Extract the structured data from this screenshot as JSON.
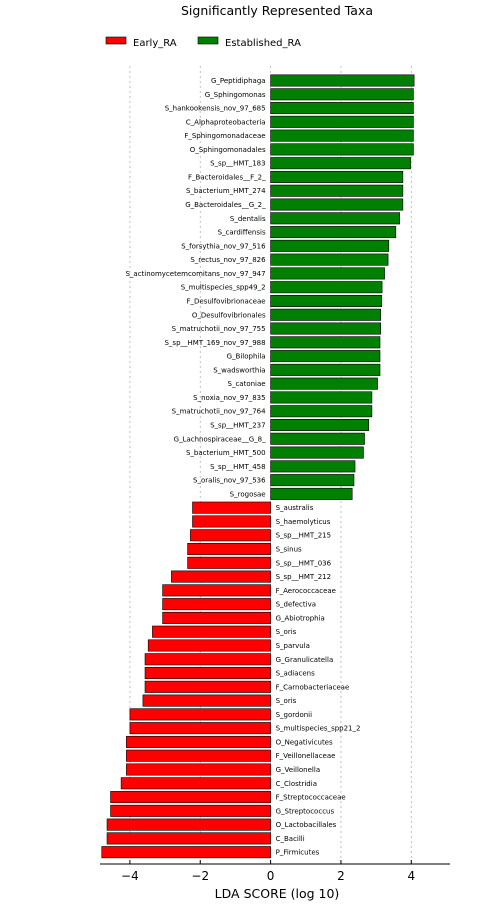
{
  "chart_data": {
    "type": "bar",
    "orientation": "horizontal",
    "title": "Significantly Represented Taxa",
    "xlabel": "LDA SCORE (log 10)",
    "ylabel": "",
    "xlim": [
      -4.85,
      5.1
    ],
    "xticks": [
      -4,
      -2,
      0,
      2,
      4
    ],
    "grid": true,
    "legend_position": "top",
    "series": [
      {
        "name": "Early_RA",
        "color": "#ff0000"
      },
      {
        "name": "Established_RA",
        "color": "#008000"
      }
    ],
    "bars": [
      {
        "label": "G_Peptidiphaga",
        "value": 4.08,
        "group": "Established_RA"
      },
      {
        "label": "G_Sphingomonas",
        "value": 4.06,
        "group": "Established_RA"
      },
      {
        "label": "S_hankookensis_nov_97_685",
        "value": 4.06,
        "group": "Established_RA"
      },
      {
        "label": "C_Alphaproteobacteria",
        "value": 4.06,
        "group": "Established_RA"
      },
      {
        "label": "F_Sphingomonadaceae",
        "value": 4.06,
        "group": "Established_RA"
      },
      {
        "label": "O_Sphingomonadales",
        "value": 4.06,
        "group": "Established_RA"
      },
      {
        "label": "S_sp__HMT_183",
        "value": 3.98,
        "group": "Established_RA"
      },
      {
        "label": "F_Bacteroidales__F_2_",
        "value": 3.76,
        "group": "Established_RA"
      },
      {
        "label": "S_bacterium_HMT_274",
        "value": 3.76,
        "group": "Established_RA"
      },
      {
        "label": "G_Bacteroidales__G_2_",
        "value": 3.76,
        "group": "Established_RA"
      },
      {
        "label": "S_dentalis",
        "value": 3.67,
        "group": "Established_RA"
      },
      {
        "label": "S_cardiffensis",
        "value": 3.56,
        "group": "Established_RA"
      },
      {
        "label": "S_forsythia_nov_97_516",
        "value": 3.36,
        "group": "Established_RA"
      },
      {
        "label": "S_rectus_nov_97_826",
        "value": 3.34,
        "group": "Established_RA"
      },
      {
        "label": "S_actinomycetemcomitans_nov_97_947",
        "value": 3.24,
        "group": "Established_RA"
      },
      {
        "label": "S_multispecies_spp49_2",
        "value": 3.17,
        "group": "Established_RA"
      },
      {
        "label": "F_Desulfovibrionaceae",
        "value": 3.16,
        "group": "Established_RA"
      },
      {
        "label": "O_Desulfovibrionales",
        "value": 3.13,
        "group": "Established_RA"
      },
      {
        "label": "S_matruchotii_nov_97_755",
        "value": 3.13,
        "group": "Established_RA"
      },
      {
        "label": "S_sp__HMT_169_nov_97_988",
        "value": 3.11,
        "group": "Established_RA"
      },
      {
        "label": "G_Bilophila",
        "value": 3.11,
        "group": "Established_RA"
      },
      {
        "label": "S_wadsworthia",
        "value": 3.11,
        "group": "Established_RA"
      },
      {
        "label": "S_catoniae",
        "value": 3.04,
        "group": "Established_RA"
      },
      {
        "label": "S_noxia_nov_97_835",
        "value": 2.88,
        "group": "Established_RA"
      },
      {
        "label": "S_matruchotii_nov_97_764",
        "value": 2.88,
        "group": "Established_RA"
      },
      {
        "label": "S_sp__HMT_237",
        "value": 2.79,
        "group": "Established_RA"
      },
      {
        "label": "G_Lachnospiraceae__G_8_",
        "value": 2.67,
        "group": "Established_RA"
      },
      {
        "label": "S_bacterium_HMT_500",
        "value": 2.64,
        "group": "Established_RA"
      },
      {
        "label": "S_sp__HMT_458",
        "value": 2.4,
        "group": "Established_RA"
      },
      {
        "label": "S_oralis_nov_97_536",
        "value": 2.37,
        "group": "Established_RA"
      },
      {
        "label": "S_rogosae",
        "value": 2.32,
        "group": "Established_RA"
      },
      {
        "label": "S_australis",
        "value": -2.22,
        "group": "Early_RA"
      },
      {
        "label": "S_haemolyticus",
        "value": -2.22,
        "group": "Early_RA"
      },
      {
        "label": "S_sp__HMT_215",
        "value": -2.28,
        "group": "Early_RA"
      },
      {
        "label": "S_sinus",
        "value": -2.36,
        "group": "Early_RA"
      },
      {
        "label": "S_sp__HMT_036",
        "value": -2.36,
        "group": "Early_RA"
      },
      {
        "label": "S_sp__HMT_212",
        "value": -2.82,
        "group": "Early_RA"
      },
      {
        "label": "F_Aerococcaceae",
        "value": -3.07,
        "group": "Early_RA"
      },
      {
        "label": "S_defectiva",
        "value": -3.07,
        "group": "Early_RA"
      },
      {
        "label": "G_Abiotrophia",
        "value": -3.07,
        "group": "Early_RA"
      },
      {
        "label": "S_oris",
        "value": -3.36,
        "group": "Early_RA"
      },
      {
        "label": "S_parvula",
        "value": -3.48,
        "group": "Early_RA"
      },
      {
        "label": "G_Granulicatella",
        "value": -3.57,
        "group": "Early_RA"
      },
      {
        "label": "S_adiacens",
        "value": -3.57,
        "group": "Early_RA"
      },
      {
        "label": "F_Carnobacteriaceae",
        "value": -3.57,
        "group": "Early_RA"
      },
      {
        "label": "S_oris",
        "value": -3.63,
        "group": "Early_RA"
      },
      {
        "label": "S_gordonii",
        "value": -4.0,
        "group": "Early_RA"
      },
      {
        "label": "S_multispecies_spp21_2",
        "value": -4.0,
        "group": "Early_RA"
      },
      {
        "label": "O_Negativicutes",
        "value": -4.1,
        "group": "Early_RA"
      },
      {
        "label": "F_Veillonellaceae",
        "value": -4.1,
        "group": "Early_RA"
      },
      {
        "label": "G_Veillonella",
        "value": -4.1,
        "group": "Early_RA"
      },
      {
        "label": "C_Clostridia",
        "value": -4.25,
        "group": "Early_RA"
      },
      {
        "label": "F_Streptococcaceae",
        "value": -4.55,
        "group": "Early_RA"
      },
      {
        "label": "G_Streptococcus",
        "value": -4.55,
        "group": "Early_RA"
      },
      {
        "label": "O_Lactobacillales",
        "value": -4.65,
        "group": "Early_RA"
      },
      {
        "label": "C_Bacilli",
        "value": -4.65,
        "group": "Early_RA"
      },
      {
        "label": "P_Firmicutes",
        "value": -4.8,
        "group": "Early_RA"
      }
    ]
  }
}
